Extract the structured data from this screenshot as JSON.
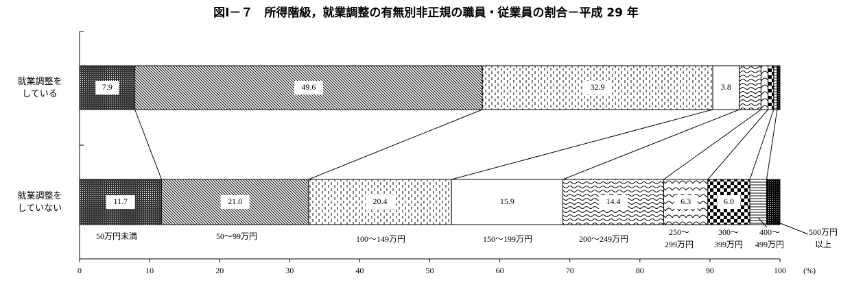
{
  "chart_data": {
    "type": "stacked-bar-horizontal",
    "title": "図Ⅰ－７　所得階級，就業調整の有無別非正規の職員・従業員の割合－平成 29 年",
    "categories": [
      "就業調整を\nしている",
      "就業調整を\nしていない"
    ],
    "series": [
      {
        "name": "50万円未満",
        "values": [
          7.9,
          11.7
        ],
        "value_labels": [
          "7.9",
          "11.7"
        ]
      },
      {
        "name": "50～99万円",
        "values": [
          49.6,
          21
        ],
        "value_labels": [
          "49.6",
          "21.0"
        ]
      },
      {
        "name": "100～149万円",
        "values": [
          32.9,
          20.4
        ],
        "value_labels": [
          "32.9",
          "20.4"
        ]
      },
      {
        "name": "150～199万円",
        "values": [
          3.8,
          15.9
        ],
        "value_labels": [
          "3.8",
          "15.9"
        ]
      },
      {
        "name": "200～249万円",
        "values": [
          3.1,
          14.4
        ],
        "value_labels": [
          null,
          "14.4"
        ]
      },
      {
        "name": "250～\n299万円",
        "values": [
          1.0,
          6.3
        ],
        "value_labels": [
          null,
          "6.3"
        ]
      },
      {
        "name": "300～\n399万円",
        "values": [
          0.8,
          6
        ],
        "value_labels": [
          null,
          "6.0"
        ]
      },
      {
        "name": "400～\n499万円",
        "values": [
          0.5,
          2.4
        ],
        "value_labels": [
          null,
          null
        ]
      },
      {
        "name": "500万円\n以上",
        "values": [
          0.4,
          1.9
        ],
        "value_labels": [
          null,
          null
        ]
      }
    ],
    "x_label": "(%)",
    "xlim": [
      0,
      100
    ],
    "xticks": [
      0,
      10,
      20,
      30,
      40,
      50,
      60,
      70,
      80,
      90,
      100
    ]
  }
}
